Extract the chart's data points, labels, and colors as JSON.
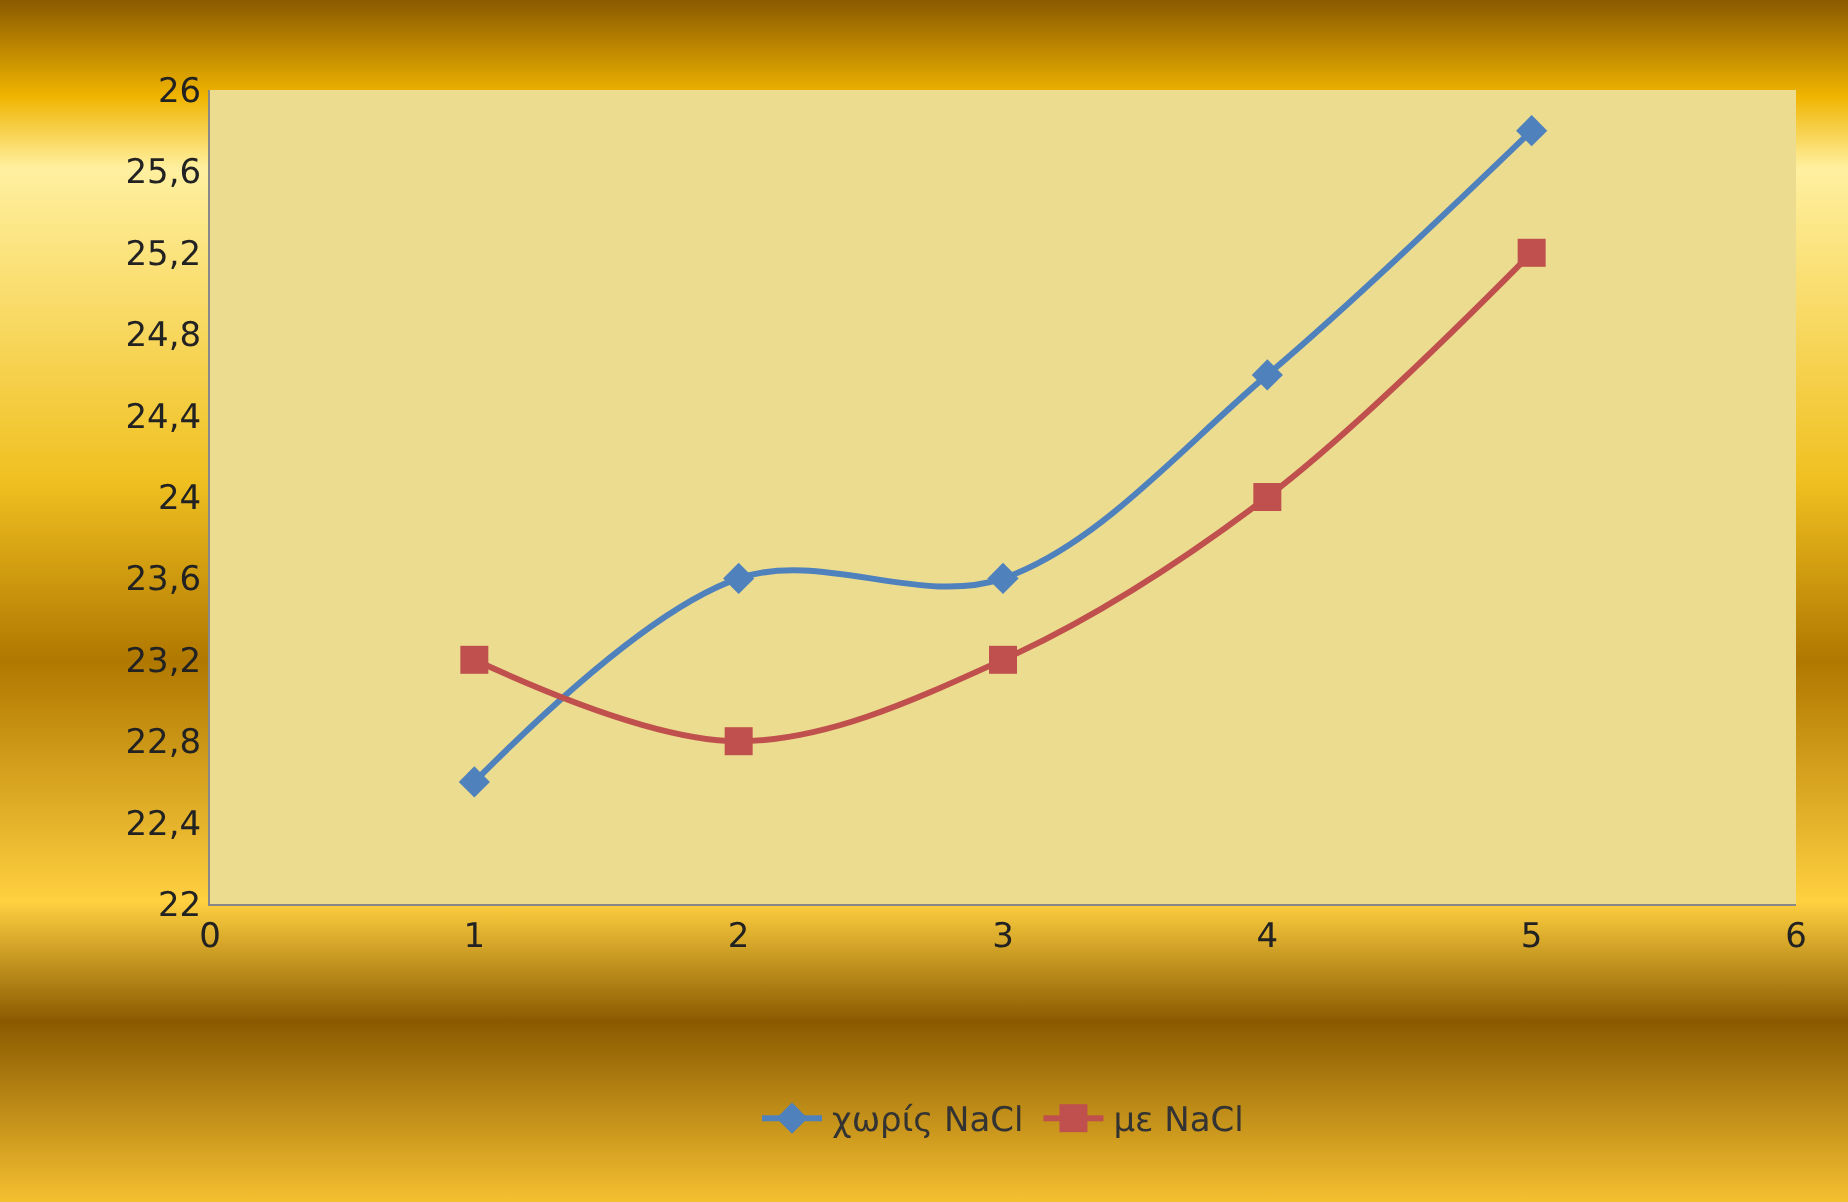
{
  "chart_data": {
    "type": "line",
    "x": [
      1,
      2,
      3,
      4,
      5
    ],
    "series": [
      {
        "name": "χωρίς NaCl",
        "color": "#4f81bd",
        "marker": "diamond",
        "values": [
          22.6,
          23.6,
          23.6,
          24.6,
          25.8
        ]
      },
      {
        "name": "με NaCl",
        "color": "#c0504d",
        "marker": "square",
        "values": [
          23.2,
          22.8,
          23.2,
          24,
          25.2
        ]
      }
    ],
    "xlim": [
      0,
      6
    ],
    "xticks": [
      0,
      1,
      2,
      3,
      4,
      5,
      6
    ],
    "ylim": [
      22,
      26
    ],
    "yticks": [
      22,
      {
        "value": 22.4,
        "label": "22,4"
      },
      {
        "value": 22.8,
        "label": "22,8"
      },
      {
        "value": 23.2,
        "label": "23,2"
      },
      {
        "value": 23.6,
        "label": "23,6"
      },
      24,
      {
        "value": 24.4,
        "label": "24,4"
      },
      {
        "value": 24.8,
        "label": "24,8"
      },
      {
        "value": 25.2,
        "label": "25,2"
      },
      {
        "value": 25.6,
        "label": "25,6"
      },
      26
    ],
    "grid": false,
    "legend": "bottom",
    "line_style": "solid"
  }
}
